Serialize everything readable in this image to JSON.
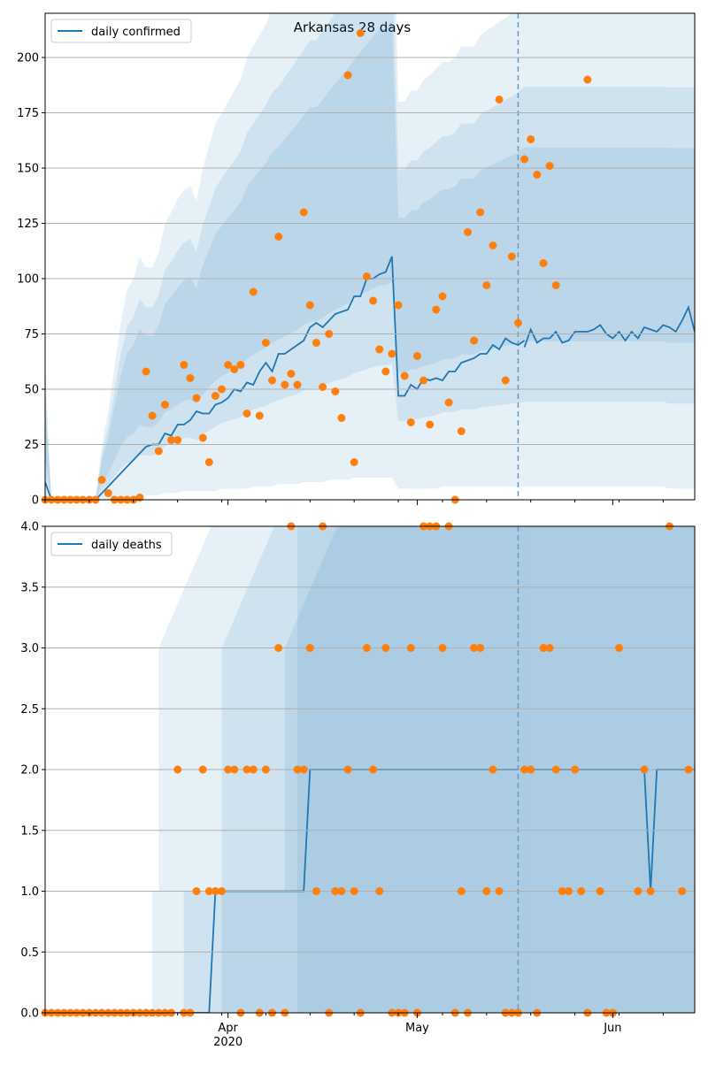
{
  "figure": {
    "title": "Arkansas 28 days",
    "accent_colors": {
      "line": "#1f77b4",
      "observed": "#ff7f0e",
      "grid": "#b0b0b0",
      "band": "#1f77b4"
    }
  },
  "x_axis": {
    "type": "date",
    "range": [
      "2020-03-03",
      "2020-06-14"
    ],
    "major_ticks": [
      {
        "date": "2020-04-01",
        "label": "Apr",
        "sublabel": "2020"
      },
      {
        "date": "2020-05-01",
        "label": "May",
        "sublabel": ""
      },
      {
        "date": "2020-06-01",
        "label": "Jun",
        "sublabel": ""
      }
    ]
  },
  "chart_data": [
    {
      "type": "line",
      "legend": [
        "daily confirmed"
      ],
      "legend_position": "top-left",
      "grid": "horizontal",
      "ylim": [
        0,
        220
      ],
      "yticks": [
        "0",
        "25",
        "50",
        "75",
        "100",
        "125",
        "150",
        "175",
        "200"
      ],
      "forecast_start": "2020-05-17",
      "series": [
        {
          "name": "daily confirmed",
          "kind": "line",
          "start": "2020-03-03",
          "values": [
            8,
            0,
            0,
            0,
            0,
            0,
            0,
            0,
            0,
            3,
            6,
            9,
            12,
            15,
            18,
            21,
            24,
            25,
            25,
            30,
            29,
            34,
            34,
            36,
            40,
            39,
            39,
            43,
            44,
            46,
            50,
            49,
            53,
            52,
            58,
            62,
            58,
            66,
            66,
            68,
            70,
            72,
            78,
            80,
            78,
            81,
            84,
            85,
            86,
            92,
            92,
            100,
            100,
            102,
            103,
            110,
            47,
            47,
            52,
            50,
            55,
            54,
            55,
            54,
            58,
            58,
            62,
            63,
            64,
            66,
            66,
            70,
            68,
            73,
            71,
            70,
            72
          ]
        },
        {
          "name": "forecast",
          "kind": "line",
          "start": "2020-05-18",
          "values": [
            69,
            77,
            71,
            73,
            73,
            76,
            71,
            72,
            76,
            76,
            76,
            77,
            79,
            75,
            73,
            76,
            72,
            76,
            73,
            78,
            77,
            76,
            79,
            78,
            76,
            81,
            87,
            76
          ]
        }
      ],
      "observed": {
        "start": "2020-03-03",
        "values": [
          0,
          0,
          0,
          0,
          0,
          0,
          0,
          0,
          0,
          9,
          3,
          0,
          0,
          0,
          0,
          1,
          58,
          38,
          22,
          43,
          27,
          27,
          61,
          55,
          46,
          28,
          17,
          47,
          50,
          61,
          59,
          61,
          39,
          94,
          38,
          71,
          54,
          119,
          52,
          57,
          52,
          130,
          88,
          71,
          51,
          75,
          49,
          37,
          192,
          17,
          211,
          101,
          90,
          68,
          58,
          66,
          88,
          56,
          35,
          65,
          54,
          34,
          86,
          92,
          44,
          0,
          31,
          121,
          72,
          130,
          97,
          115,
          181,
          54,
          110,
          80,
          154,
          163,
          147,
          107,
          151,
          97,
          null,
          null,
          null,
          null,
          190
        ]
      },
      "bands": [
        {
          "name": "outer",
          "lower": [
            0,
            0,
            0,
            0,
            0,
            0,
            0,
            0,
            0,
            0,
            0,
            0,
            0,
            0,
            0,
            1,
            2,
            2,
            2,
            3,
            3,
            3,
            4,
            4,
            4,
            4,
            4,
            4,
            5,
            5,
            5,
            5,
            5,
            6,
            6,
            6,
            6,
            7,
            7,
            7,
            7,
            8,
            8,
            8,
            8,
            9,
            9,
            9,
            9,
            10,
            10,
            10,
            10,
            10,
            10,
            10,
            5,
            5,
            5,
            5,
            5,
            5,
            5,
            6,
            6,
            6,
            6,
            6,
            6,
            6,
            6,
            6,
            6,
            6,
            6,
            6,
            6,
            6,
            6,
            6,
            6,
            6,
            6,
            6,
            6,
            6,
            6,
            6,
            6,
            6,
            6,
            6,
            6,
            6,
            6,
            6,
            6,
            6,
            6,
            5,
            5,
            5,
            5,
            5
          ],
          "upper": [
            60,
            0,
            0,
            0,
            0,
            0,
            0,
            0,
            0,
            25,
            40,
            60,
            80,
            95,
            100,
            110,
            105,
            105,
            112,
            125,
            130,
            136,
            140,
            142,
            135,
            150,
            160,
            170,
            175,
            180,
            185,
            190,
            200,
            205,
            210,
            215,
            222,
            225,
            230,
            235,
            240,
            245,
            250,
            250,
            255,
            260,
            265,
            270,
            275,
            280,
            285,
            290,
            295,
            300,
            300,
            305,
            180,
            180,
            185,
            185,
            190,
            192,
            195,
            198,
            198,
            200,
            205,
            205,
            205,
            210,
            212,
            214,
            216,
            218,
            220,
            222,
            225,
            225,
            225,
            225,
            225,
            225,
            225,
            225,
            225,
            225,
            225,
            225,
            225,
            225,
            225,
            225,
            225,
            225,
            225,
            225,
            225,
            225,
            225,
            225,
            225,
            225,
            225,
            225
          ]
        }
      ]
    },
    {
      "type": "line",
      "legend": [
        "daily deaths"
      ],
      "legend_position": "top-left",
      "grid": "horizontal",
      "ylim": [
        0,
        4
      ],
      "yticks": [
        "0.0",
        "0.5",
        "1.0",
        "1.5",
        "2.0",
        "2.5",
        "3.0",
        "3.5",
        "4.0"
      ],
      "forecast_start": "2020-05-17",
      "series": [
        {
          "name": "daily deaths",
          "kind": "line",
          "steps": [
            [
              "2020-03-03",
              0
            ],
            [
              "2020-03-29",
              0
            ],
            [
              "2020-03-30",
              1
            ],
            [
              "2020-04-13",
              1
            ],
            [
              "2020-04-14",
              2
            ],
            [
              "2020-05-17",
              2
            ]
          ]
        },
        {
          "name": "forecast",
          "kind": "line",
          "steps": [
            [
              "2020-05-18",
              2
            ],
            [
              "2020-06-06",
              2
            ],
            [
              "2020-06-07",
              1
            ],
            [
              "2020-06-08",
              2
            ],
            [
              "2020-06-14",
              2
            ]
          ]
        }
      ],
      "observed": {
        "start": "2020-03-03",
        "values": [
          0,
          0,
          0,
          0,
          0,
          0,
          0,
          0,
          0,
          0,
          0,
          0,
          0,
          0,
          0,
          0,
          0,
          0,
          0,
          0,
          0,
          2,
          0,
          0,
          1,
          2,
          1,
          1,
          1,
          2,
          2,
          0,
          2,
          2,
          0,
          2,
          0,
          3,
          0,
          4,
          2,
          2,
          3,
          1,
          4,
          0,
          1,
          1,
          2,
          1,
          0,
          3,
          2,
          1,
          3,
          0,
          0,
          0,
          3,
          0,
          4,
          4,
          4,
          3,
          4,
          0,
          1,
          0,
          3,
          3,
          1,
          2,
          1,
          0,
          0,
          0,
          2,
          2,
          0,
          3,
          3,
          2,
          1,
          1,
          2,
          1,
          0,
          null,
          1,
          0,
          0,
          3,
          null,
          null,
          1,
          2,
          1,
          null,
          null,
          4,
          null,
          1,
          2
        ],
        "clip_above": 4
      }
    }
  ]
}
